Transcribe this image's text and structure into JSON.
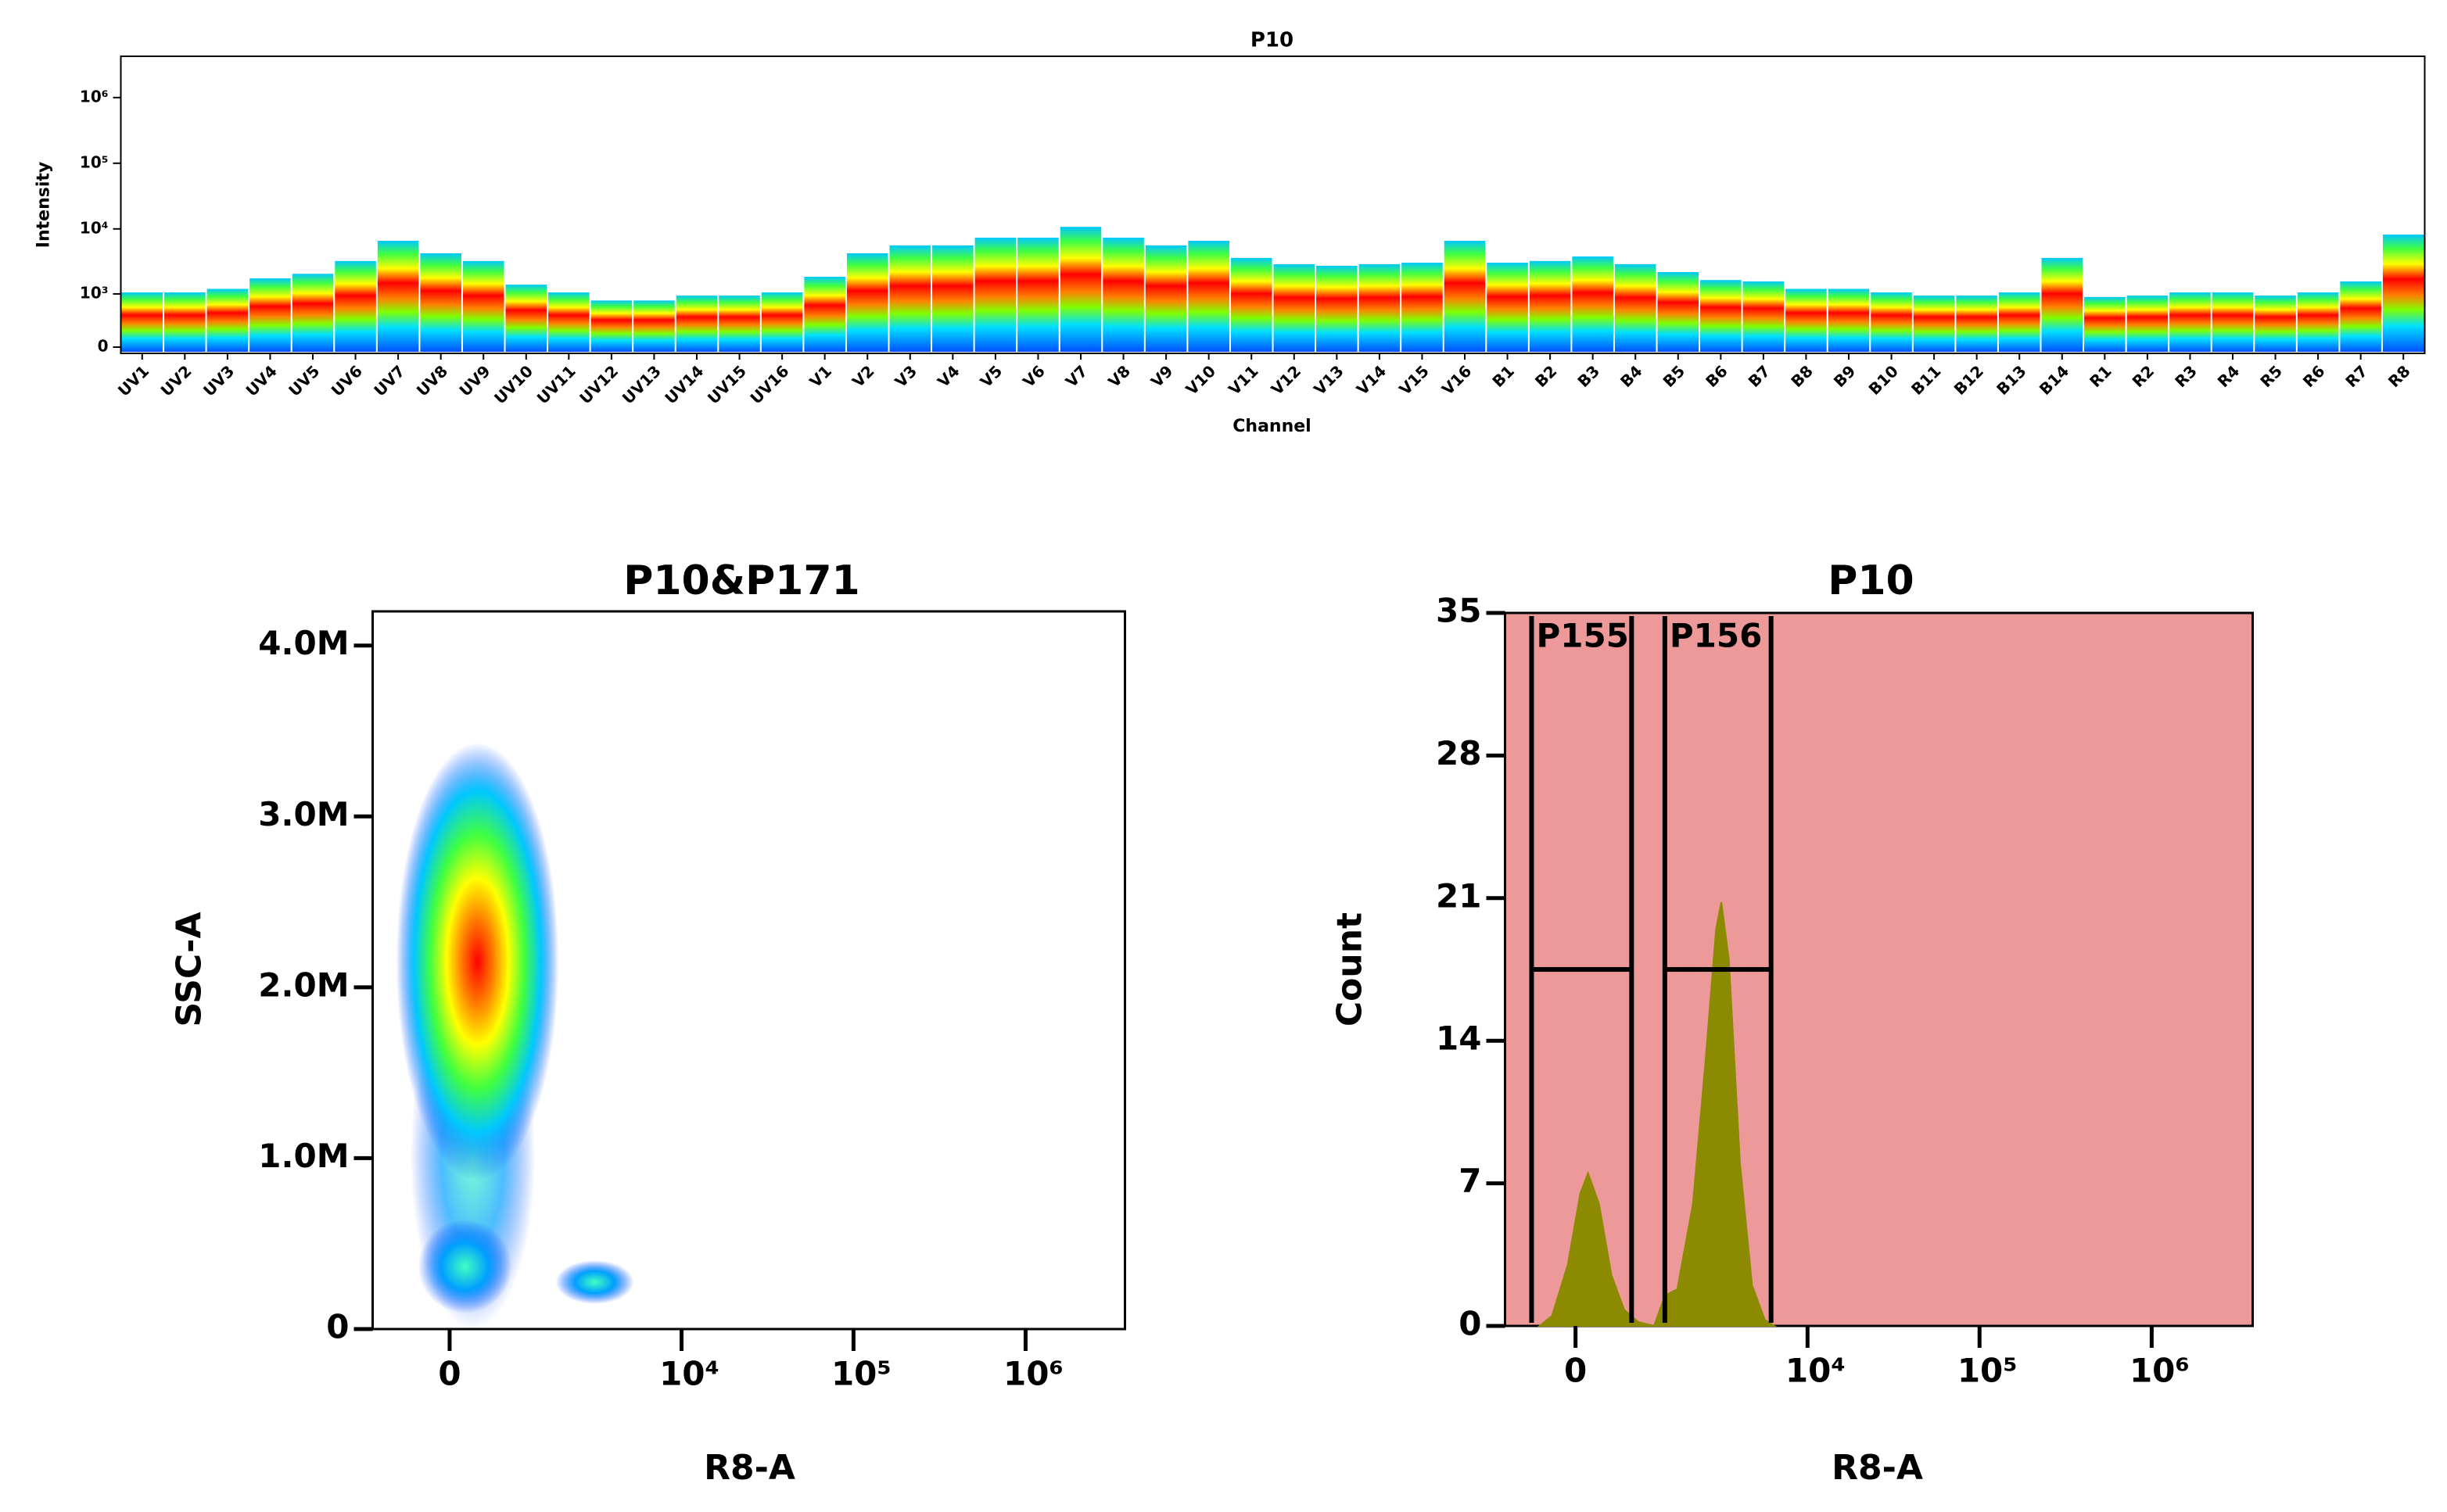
{
  "chart_data": [
    {
      "type": "spectrum",
      "title": "P10",
      "x_label": "Channel",
      "y_label": "Intensity",
      "categories": [
        "UV1",
        "UV2",
        "UV3",
        "UV4",
        "UV5",
        "UV6",
        "UV7",
        "UV8",
        "UV9",
        "UV10",
        "UV11",
        "UV12",
        "UV13",
        "UV14",
        "UV15",
        "UV16",
        "V1",
        "V2",
        "V3",
        "V4",
        "V5",
        "V6",
        "V7",
        "V8",
        "V9",
        "V10",
        "V11",
        "V12",
        "V13",
        "V14",
        "V15",
        "V16",
        "B1",
        "B2",
        "B3",
        "B4",
        "B5",
        "B6",
        "B7",
        "B8",
        "B9",
        "B10",
        "B11",
        "B12",
        "B13",
        "B14",
        "R1",
        "R2",
        "R3",
        "R4",
        "R5",
        "R6",
        "R7",
        "R8"
      ],
      "values": [
        340,
        340,
        400,
        620,
        740,
        1190,
        2450,
        1570,
        1190,
        480,
        340,
        220,
        220,
        290,
        290,
        340,
        660,
        1570,
        2080,
        2080,
        2730,
        2730,
        4000,
        2730,
        2080,
        2450,
        1330,
        1060,
        1000,
        1060,
        1120,
        2450,
        1120,
        1190,
        1400,
        1060,
        790,
        580,
        550,
        400,
        400,
        340,
        290,
        290,
        340,
        1330,
        270,
        290,
        340,
        340,
        290,
        340,
        550,
        3050
      ],
      "yscale": "asinh",
      "asinh_cofactor": 317,
      "ylim": [
        -70,
        4250000
      ],
      "yticks": [
        0,
        {
          "value": 1000,
          "label": "10³"
        },
        {
          "value": 10000,
          "label": "10⁴"
        },
        {
          "value": 100000,
          "label": "10⁵"
        },
        {
          "value": 1000000,
          "label": "10⁶"
        }
      ]
    },
    {
      "type": "density",
      "title": "P10&P171",
      "x_label": "R8-A",
      "y_label": "SSC-A",
      "xscale": "asinh",
      "asinh_cofactor": 900,
      "xlim": [
        -1100,
        3780000
      ],
      "xticks": [
        0,
        {
          "value": 10000,
          "label": "10⁴"
        },
        {
          "value": 100000,
          "label": "10⁵"
        },
        {
          "value": 1000000,
          "label": "10⁶"
        }
      ],
      "ylim": [
        0,
        4200000
      ],
      "yticks": [
        0,
        {
          "value": 1000000,
          "label": "1.0M"
        },
        {
          "value": 2000000,
          "label": "2.0M"
        },
        {
          "value": 3000000,
          "label": "3.0M"
        },
        {
          "value": 4000000,
          "label": "4.0M"
        }
      ]
    },
    {
      "type": "area",
      "title": "P10",
      "x_label": "R8-A",
      "y_label": "Count",
      "color": "#8c8a00",
      "background": "#ee9999",
      "xscale": "asinh",
      "asinh_cofactor": 900,
      "xlim": [
        -980,
        3860000
      ],
      "xticks": [
        0,
        {
          "value": 10000,
          "label": "10⁴"
        },
        {
          "value": 100000,
          "label": "10⁵"
        },
        {
          "value": 1000000,
          "label": "10⁶"
        }
      ],
      "ylim": [
        0,
        35
      ],
      "yticks": [
        0,
        7,
        14,
        21,
        28,
        35
      ],
      "x": [
        -450,
        -287,
        -94,
        57,
        151,
        287,
        449,
        627,
        845,
        1130,
        1350,
        1640,
        2070,
        2480,
        2880,
        3100,
        3440,
        4010,
        4730,
        5620,
        6390
      ],
      "values": [
        0,
        0.5,
        3,
        6.5,
        7.5,
        6,
        2.5,
        0.8,
        0.2,
        0,
        1.5,
        1.8,
        6,
        13,
        19.5,
        20.8,
        18,
        8,
        2,
        0.3,
        0
      ],
      "gates": [
        {
          "label": "P155",
          "x": [
            -560,
            740
          ],
          "y": 17.5
        },
        {
          "label": "P156",
          "x": [
            1350,
            6120
          ],
          "y": 17.5
        }
      ]
    }
  ]
}
